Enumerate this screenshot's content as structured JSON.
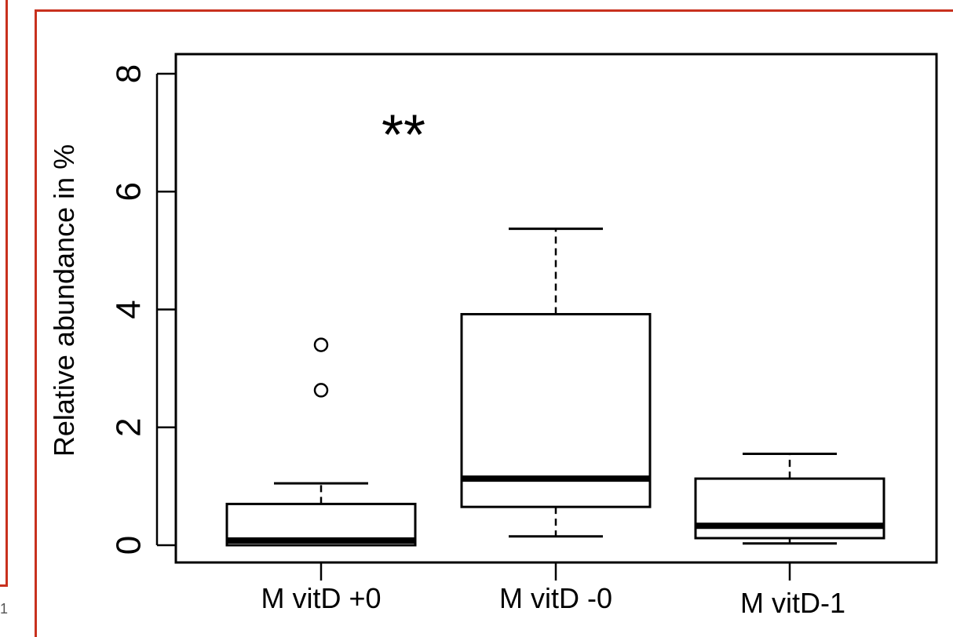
{
  "page": {
    "corner_mark": "1"
  },
  "chart_data": {
    "type": "box",
    "title": "",
    "xlabel": "",
    "ylabel": "Relative abundance in %",
    "ylim": [
      0,
      8
    ],
    "yticks": [
      "0",
      "2",
      "4",
      "6",
      "8"
    ],
    "categories": [
      "M vitD +0",
      "M vitD -0",
      "M vitD-1"
    ],
    "boxes": [
      {
        "category": "M vitD +0",
        "whisker_low": 0.0,
        "q1": 0.0,
        "median": 0.08,
        "q3": 0.7,
        "whisker_high": 1.05,
        "outliers": [
          2.63,
          3.4
        ]
      },
      {
        "category": "M vitD -0",
        "whisker_low": 0.15,
        "q1": 0.65,
        "median": 1.13,
        "q3": 3.92,
        "whisker_high": 5.37,
        "outliers": []
      },
      {
        "category": "M vitD-1",
        "whisker_low": 0.03,
        "q1": 0.12,
        "median": 0.33,
        "q3": 1.13,
        "whisker_high": 1.55,
        "outliers": []
      }
    ],
    "annotations": [
      {
        "text": "**",
        "x": "M vitD +0",
        "y": 7.1
      }
    ],
    "colors": {
      "frame": "#c8311e",
      "ink": "#000000",
      "box_fill": "#ffffff"
    }
  }
}
